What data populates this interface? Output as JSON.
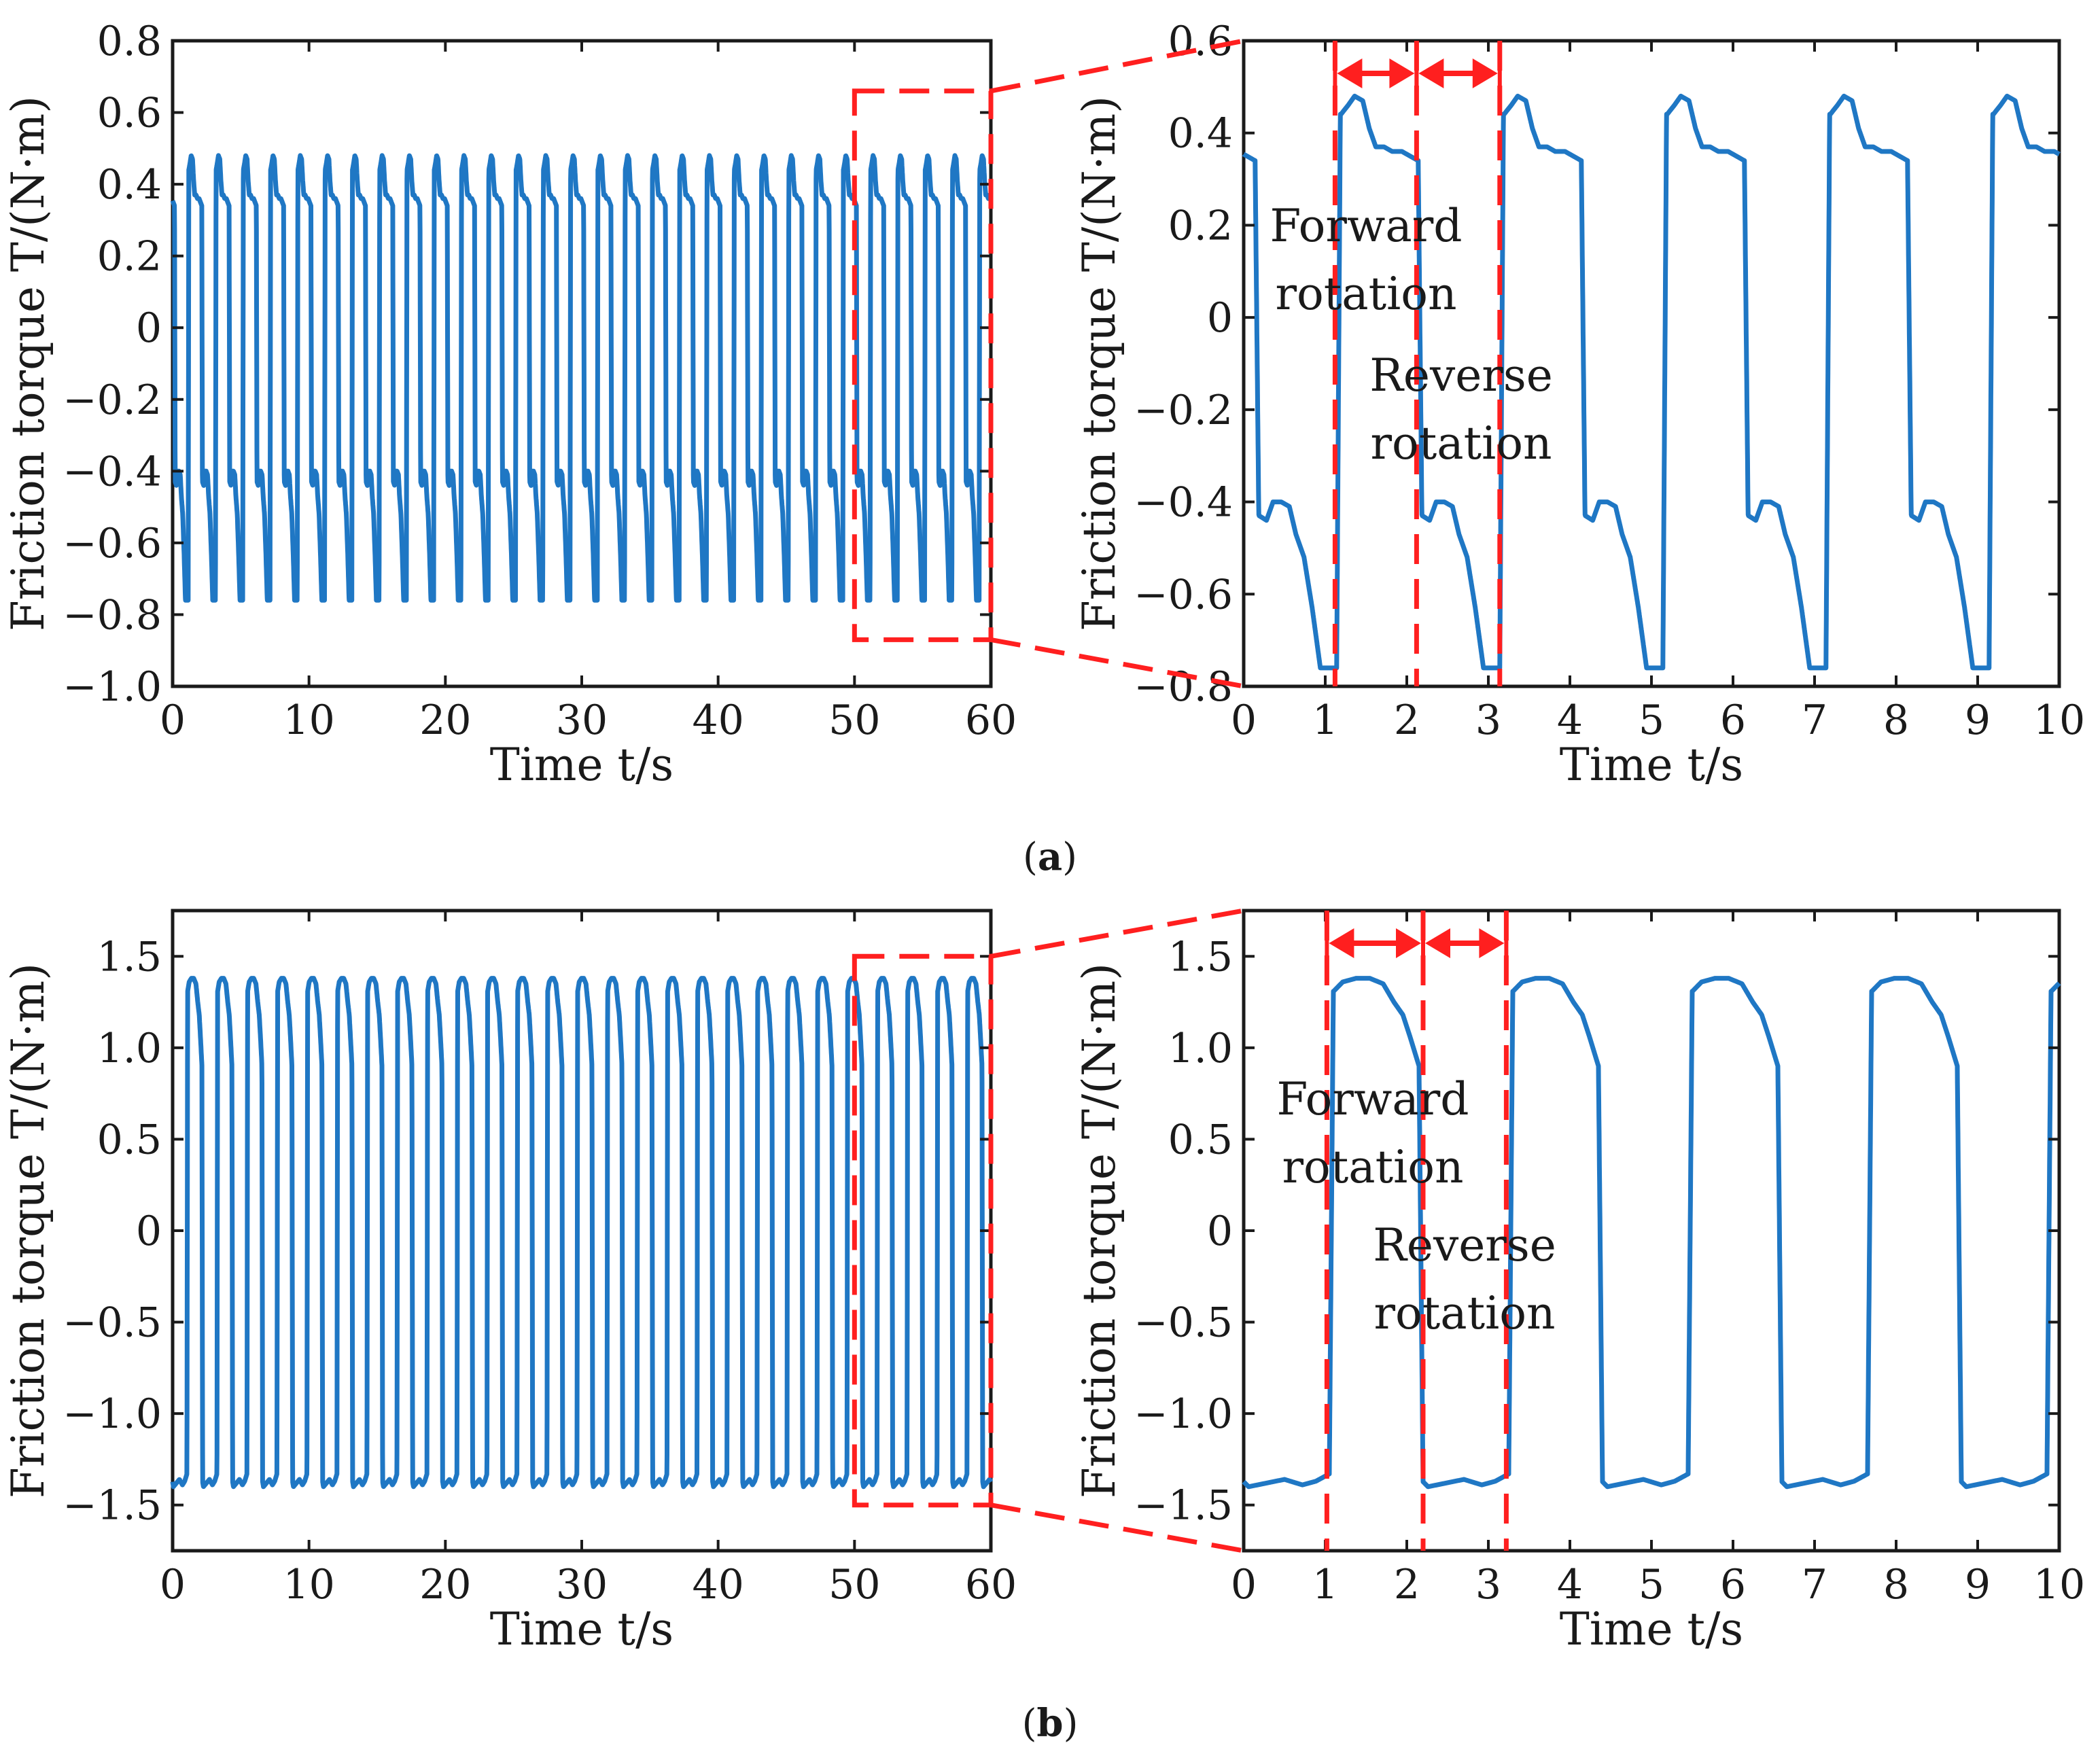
{
  "colors": {
    "series": "#1f77c4",
    "highlight": "#ff1f1f",
    "axis": "#1a1a1a",
    "background": "#ffffff"
  },
  "captions": [
    {
      "open": "(",
      "letter": "a",
      "close": ")"
    },
    {
      "open": "(",
      "letter": "b",
      "close": ")"
    }
  ],
  "chart_data": [
    {
      "id": "a-full",
      "type": "line",
      "xlabel": "Time t/s",
      "ylabel": "Friction torque T/(N·m)",
      "xlim": [
        0,
        60
      ],
      "ylim": [
        -1.0,
        0.8
      ],
      "xticks": [
        0,
        10,
        20,
        30,
        40,
        50,
        60
      ],
      "xtick_labels": [
        "0",
        "10",
        "20",
        "30",
        "40",
        "50",
        "60"
      ],
      "yticks": [
        -1.0,
        -0.8,
        -0.6,
        -0.4,
        -0.2,
        0,
        0.2,
        0.4,
        0.6,
        0.8
      ],
      "ytick_labels": [
        "−1.0",
        "−0.8",
        "−0.6",
        "−0.4",
        "−0.2",
        "0",
        "0.2",
        "0.4",
        "0.6",
        "0.8"
      ],
      "series": [
        {
          "name": "friction-torque",
          "pattern": "a",
          "x_range": [
            0,
            60
          ],
          "period": 2.0,
          "phase": 1.14
        }
      ],
      "zoom_region": {
        "x": [
          50,
          60
        ],
        "y": [
          -0.87,
          0.66
        ]
      }
    },
    {
      "id": "a-zoom",
      "type": "line",
      "xlabel": "Time t/s",
      "ylabel": "Friction torque T/(N·m)",
      "xlim": [
        0,
        10
      ],
      "ylim": [
        -0.8,
        0.6
      ],
      "xticks": [
        0,
        1,
        2,
        3,
        4,
        5,
        6,
        7,
        8,
        9,
        10
      ],
      "xtick_labels": [
        "0",
        "1",
        "2",
        "3",
        "4",
        "5",
        "6",
        "7",
        "8",
        "9",
        "10"
      ],
      "yticks": [
        -0.8,
        -0.6,
        -0.4,
        -0.2,
        0,
        0.2,
        0.4,
        0.6
      ],
      "ytick_labels": [
        "−0.8",
        "−0.6",
        "−0.4",
        "−0.2",
        "0",
        "0.2",
        "0.4",
        "0.6"
      ],
      "series": [
        {
          "name": "friction-torque",
          "pattern": "a",
          "x_range": [
            0,
            10
          ],
          "period": 2.0,
          "phase": 1.14
        }
      ],
      "markers": {
        "lines": [
          1.12,
          2.12,
          3.14
        ],
        "arrows": [
          [
            1.12,
            2.12
          ],
          [
            2.12,
            3.14
          ]
        ]
      },
      "annotations": [
        {
          "id": "forward",
          "lines": [
            "Forward",
            "rotation"
          ]
        },
        {
          "id": "reverse",
          "lines": [
            "Reverse",
            "rotation"
          ]
        }
      ]
    },
    {
      "id": "b-full",
      "type": "line",
      "xlabel": "Time t/s",
      "ylabel": "Friction torque T/(N·m)",
      "xlim": [
        0,
        60
      ],
      "ylim": [
        -1.75,
        1.75
      ],
      "xticks": [
        0,
        10,
        20,
        30,
        40,
        50,
        60
      ],
      "xtick_labels": [
        "0",
        "10",
        "20",
        "30",
        "40",
        "50",
        "60"
      ],
      "yticks": [
        -1.5,
        -1.0,
        -0.5,
        0,
        0.5,
        1.0,
        1.5
      ],
      "ytick_labels": [
        "−1.5",
        "−1.0",
        "−0.5",
        "0",
        "0.5",
        "1.0",
        "1.5"
      ],
      "series": [
        {
          "name": "friction-torque",
          "pattern": "b",
          "x_range": [
            0,
            60
          ],
          "period": 2.2,
          "phase": 1.05
        }
      ],
      "zoom_region": {
        "x": [
          50,
          60
        ],
        "y": [
          -1.5,
          1.5
        ]
      }
    },
    {
      "id": "b-zoom",
      "type": "line",
      "xlabel": "Time t/s",
      "ylabel": "Friction torque T/(N·m)",
      "xlim": [
        0,
        10
      ],
      "ylim": [
        -1.75,
        1.75
      ],
      "xticks": [
        0,
        1,
        2,
        3,
        4,
        5,
        6,
        7,
        8,
        9,
        10
      ],
      "xtick_labels": [
        "0",
        "1",
        "2",
        "3",
        "4",
        "5",
        "6",
        "7",
        "8",
        "9",
        "10"
      ],
      "yticks": [
        -1.5,
        -1.0,
        -0.5,
        0,
        0.5,
        1.0,
        1.5
      ],
      "ytick_labels": [
        "−1.5",
        "−1.0",
        "−0.5",
        "0",
        "0.5",
        "1.0",
        "1.5"
      ],
      "series": [
        {
          "name": "friction-torque",
          "pattern": "b",
          "x_range": [
            0,
            10
          ],
          "period": 2.2,
          "phase": 1.05
        }
      ],
      "markers": {
        "lines": [
          1.02,
          2.2,
          3.22
        ],
        "arrows": [
          [
            1.02,
            2.2
          ],
          [
            2.2,
            3.22
          ]
        ]
      },
      "annotations": [
        {
          "id": "forward",
          "lines": [
            "Forward",
            "rotation"
          ]
        },
        {
          "id": "reverse",
          "lines": [
            "Reverse",
            "rotation"
          ]
        }
      ]
    }
  ]
}
